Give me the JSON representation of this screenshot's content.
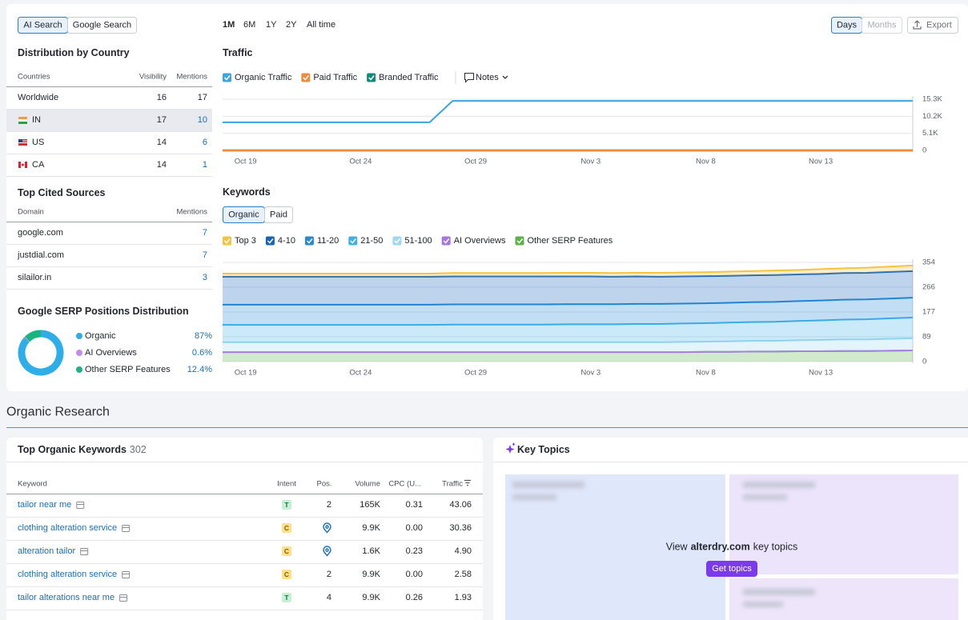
{
  "search_tabs": [
    "AI Search",
    "Google Search"
  ],
  "periods": [
    "1M",
    "6M",
    "1Y",
    "2Y",
    "All time"
  ],
  "granularity": [
    "Days",
    "Months"
  ],
  "export": "Export",
  "country_table": {
    "title": "Distribution by Country",
    "columns": [
      "Countries",
      "Visibility",
      "Mentions"
    ],
    "rows": [
      [
        "Worldwide",
        16,
        17
      ],
      [
        "IN",
        17,
        10
      ],
      [
        "US",
        14,
        6
      ],
      [
        "CA",
        14,
        1
      ]
    ]
  },
  "sources_table": {
    "title": "Top Cited Sources",
    "columns": [
      "Domain",
      "Mentions"
    ],
    "rows": [
      [
        "google.com",
        7
      ],
      [
        "justdial.com",
        7
      ],
      [
        "silailor.in",
        3
      ]
    ]
  },
  "serp_distribution": {
    "title": "Google SERP Positions Distribution",
    "chart_data": {
      "type": "pie",
      "categories": [
        "Organic",
        "AI Overviews",
        "Other SERP Features"
      ],
      "colors": [
        "#2eaee8",
        "#c58af0",
        "#1bb37f"
      ],
      "values": [
        87,
        0.6,
        12.4
      ],
      "value_labels": [
        "87%",
        "0.6%",
        "12.4%"
      ]
    }
  },
  "traffic": {
    "title": "Traffic",
    "notes": "Notes",
    "chart_data": {
      "type": "line",
      "categories": [
        null,
        "Oct 19",
        null,
        null,
        null,
        null,
        "Oct 24",
        null,
        null,
        null,
        null,
        "Oct 29",
        null,
        null,
        null,
        null,
        "Nov 3",
        null,
        null,
        null,
        null,
        "Nov 8",
        null,
        null,
        null,
        null,
        "Nov 13",
        null,
        null,
        null,
        null
      ],
      "series": [
        {
          "name": "Organic Traffic",
          "color": "#3aa6dc",
          "values": [
            8400,
            8400,
            8400,
            8400,
            8400,
            8400,
            8400,
            8400,
            8400,
            8400,
            14800,
            14800,
            14800,
            14800,
            14800,
            14800,
            14800,
            14800,
            14800,
            14800,
            14800,
            14800,
            14800,
            14800,
            14800,
            14800,
            14800,
            14800,
            14800,
            14800,
            14800
          ]
        },
        {
          "name": "Paid Traffic",
          "color": "#f08a3c",
          "values": [
            0,
            0,
            0,
            0,
            0,
            0,
            0,
            0,
            0,
            0,
            0,
            0,
            0,
            0,
            0,
            0,
            0,
            0,
            0,
            0,
            0,
            0,
            0,
            0,
            0,
            0,
            0,
            0,
            0,
            0,
            0
          ]
        },
        {
          "name": "Branded Traffic",
          "color": "#0d8a7a",
          "values": [
            0,
            0,
            0,
            0,
            0,
            0,
            0,
            0,
            0,
            0,
            0,
            0,
            0,
            0,
            0,
            0,
            0,
            0,
            0,
            0,
            0,
            0,
            0,
            0,
            0,
            0,
            0,
            0,
            0,
            0,
            0
          ]
        }
      ],
      "ylim": [
        0,
        15300
      ],
      "yticks": [
        0,
        {
          "value": 5100,
          "label": "5.1K"
        },
        {
          "value": 10200,
          "label": "10.2K"
        },
        {
          "value": 15300,
          "label": "15.3K"
        }
      ],
      "grid": true
    }
  },
  "keywords": {
    "title": "Keywords",
    "tabs": [
      "Organic",
      "Paid"
    ],
    "chart_data": {
      "type": "area",
      "stacked": true,
      "categories": [
        null,
        "Oct 19",
        null,
        null,
        null,
        null,
        "Oct 24",
        null,
        null,
        null,
        null,
        "Oct 29",
        null,
        null,
        null,
        null,
        "Nov 3",
        null,
        null,
        null,
        null,
        "Nov 8",
        null,
        null,
        null,
        null,
        "Nov 13",
        null,
        null,
        null,
        null
      ],
      "series": [
        {
          "name": "Top 3",
          "color": "#f5c242",
          "values": [
            11,
            11,
            11,
            11,
            11,
            11,
            11,
            11,
            11,
            11,
            12,
            12,
            12,
            12,
            12,
            13,
            13,
            13,
            13,
            14,
            14,
            14,
            15,
            15,
            16,
            16,
            17,
            17,
            18,
            19,
            20
          ]
        },
        {
          "name": "4-10",
          "color": "#1565c0",
          "values": [
            100,
            100,
            100,
            100,
            100,
            100,
            100,
            100,
            100,
            100,
            100,
            100,
            100,
            100,
            100,
            99,
            99,
            98,
            98,
            97,
            97,
            97,
            96,
            96,
            96,
            95,
            95,
            95,
            95,
            95,
            95
          ]
        },
        {
          "name": "11-20",
          "color": "#2389d8",
          "values": [
            72,
            72,
            72,
            72,
            72,
            72,
            72,
            72,
            72,
            72,
            72,
            72,
            72,
            72,
            72,
            72,
            72,
            72,
            72,
            72,
            71,
            71,
            71,
            71,
            71,
            71,
            71,
            71,
            71,
            71,
            71
          ]
        },
        {
          "name": "21-50",
          "color": "#40b0e8",
          "values": [
            62,
            62,
            62,
            62,
            62,
            62,
            62,
            62,
            62,
            62,
            63,
            63,
            63,
            63,
            63,
            64,
            64,
            64,
            65,
            65,
            66,
            66,
            67,
            67,
            68,
            69,
            70,
            71,
            72,
            73,
            74
          ]
        },
        {
          "name": "51-100",
          "color": "#9fd8f2",
          "values": [
            35,
            35,
            35,
            35,
            35,
            35,
            35,
            35,
            35,
            35,
            35,
            35,
            35,
            35,
            35,
            35,
            35,
            35,
            35,
            35,
            36,
            36,
            37,
            38,
            38,
            39,
            40,
            41,
            41,
            42,
            43
          ]
        },
        {
          "name": "AI Overviews",
          "color": "#a875e0",
          "values": [
            0,
            0,
            0,
            0,
            0,
            0,
            0,
            0,
            0,
            0,
            0,
            0,
            0,
            0,
            0,
            0,
            0,
            0,
            0,
            0,
            0,
            0,
            0,
            0,
            0,
            0,
            0,
            0,
            0,
            0,
            0
          ]
        },
        {
          "name": "Other SERP Features",
          "color": "#5bb345",
          "values": [
            34,
            34,
            34,
            34,
            34,
            34,
            34,
            34,
            34,
            34,
            34,
            34,
            34,
            34,
            34,
            34,
            34,
            34,
            34,
            34,
            34,
            35,
            35,
            36,
            36,
            37,
            37,
            38,
            38,
            39,
            40
          ]
        }
      ],
      "ylim": [
        0,
        354
      ],
      "yticks": [
        0,
        89,
        177,
        266,
        354
      ],
      "grid": true
    }
  },
  "section_title": "Organic Research",
  "top_keywords": {
    "title": "Top Organic Keywords",
    "count": 302,
    "columns": [
      "Keyword",
      "Intent",
      "Pos.",
      "Volume",
      "CPC (U...",
      "Traffic"
    ],
    "rows": [
      {
        "keyword": "tailor near me",
        "intent": "T",
        "position": 2,
        "volume": "165K",
        "cpc": "0.31",
        "traffic": "43.06"
      },
      {
        "keyword": "clothing alteration service",
        "intent": "C",
        "position": null,
        "volume": "9.9K",
        "cpc": "0.00",
        "traffic": "30.36"
      },
      {
        "keyword": "alteration tailor",
        "intent": "C",
        "position": null,
        "volume": "1.6K",
        "cpc": "0.23",
        "traffic": "4.90"
      },
      {
        "keyword": "clothing alteration service",
        "intent": "C",
        "position": 2,
        "volume": "9.9K",
        "cpc": "0.00",
        "traffic": "2.58"
      },
      {
        "keyword": "tailor alterations near me",
        "intent": "T",
        "position": 4,
        "volume": "9.9K",
        "cpc": "0.26",
        "traffic": "1.93"
      }
    ]
  },
  "key_topics": {
    "title": "Key Topics",
    "prompt_before": "View",
    "domain": "alterdry.com",
    "prompt_after": "key topics",
    "button": "Get topics"
  }
}
